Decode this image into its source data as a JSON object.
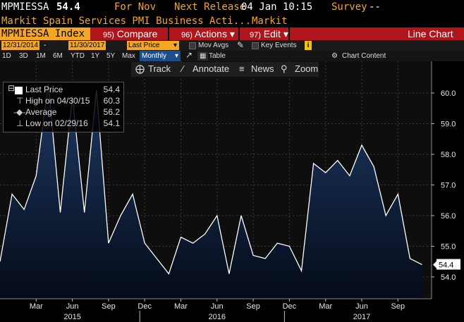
{
  "header": {
    "ticker": "MPMIESSA",
    "last": "54.4",
    "for_label": "For Nov",
    "next_release_label": "Next Release",
    "next_release_value": "04 Jan 10:15",
    "survey_label": "Survey",
    "survey_value": "--",
    "description": "Markit Spain Services PMI Business Acti...",
    "source": "Markit"
  },
  "command_bar": {
    "ticker_box": "MPMIESSA Index",
    "compare_num": "95)",
    "compare_label": "Compare",
    "actions_num": "96)",
    "actions_label": "Actions",
    "edit_num": "97)",
    "edit_label": "Edit",
    "view_label": "Line Chart"
  },
  "controls": {
    "start_date": "12/31/2014",
    "end_date": "11/30/2017",
    "field": "Last Price",
    "mov_avgs": "Mov Avgs",
    "key_events": "Key Events",
    "key_events_badge": "i",
    "periods": [
      "1D",
      "3D",
      "1M",
      "6M",
      "YTD",
      "1Y",
      "5Y",
      "Max"
    ],
    "frequency": "Monthly",
    "table_label": "Table",
    "chart_content_label": "Chart Content"
  },
  "toolbar": {
    "track": "Track",
    "annotate": "Annotate",
    "news": "News",
    "zoom": "Zoom"
  },
  "legend": {
    "last_price_label": "Last Price",
    "last_price_value": "54.4",
    "high_label": "High on 04/30/15",
    "high_value": "60.3",
    "average_label": "Average",
    "average_value": "56.2",
    "low_label": "Low on 02/29/16",
    "low_value": "54.1"
  },
  "colors": {
    "line": "#ffffff",
    "fill_top": "#1e3a66",
    "fill_bottom": "#050b18",
    "axis_text": "#e6e6e6",
    "accent": "#f5a623",
    "bar_red": "#b0151b"
  },
  "chart_data": {
    "type": "area",
    "title": "",
    "xlabel": "",
    "ylabel": "",
    "x": [
      "2014-12",
      "2015-01",
      "2015-02",
      "2015-03",
      "2015-04",
      "2015-05",
      "2015-06",
      "2015-07",
      "2015-08",
      "2015-09",
      "2015-10",
      "2015-11",
      "2015-12",
      "2016-01",
      "2016-02",
      "2016-03",
      "2016-04",
      "2016-05",
      "2016-06",
      "2016-07",
      "2016-08",
      "2016-09",
      "2016-10",
      "2016-11",
      "2016-12",
      "2017-01",
      "2017-02",
      "2017-03",
      "2017-04",
      "2017-05",
      "2017-06",
      "2017-07",
      "2017-08",
      "2017-09",
      "2017-10",
      "2017-11"
    ],
    "values": [
      54.5,
      56.7,
      56.2,
      57.3,
      60.3,
      56.1,
      59.9,
      56.1,
      60.1,
      55.1,
      56.0,
      56.7,
      55.1,
      54.6,
      54.1,
      55.3,
      55.1,
      55.4,
      56.0,
      54.1,
      56.0,
      54.7,
      54.6,
      55.1,
      55.0,
      54.2,
      57.7,
      57.4,
      57.8,
      57.3,
      58.3,
      57.6,
      56.0,
      56.7,
      54.6,
      54.4
    ],
    "ylim": [
      53.9,
      60.45
    ],
    "y_ticks": [
      54.0,
      55.0,
      56.0,
      57.0,
      58.0,
      59.0,
      60.0
    ],
    "y_tick_labels": [
      "54.0",
      "55.0",
      "56.0",
      "57.0",
      "58.0",
      "59.0",
      "60.0"
    ],
    "x_month_ticks": [
      {
        "label": "Mar",
        "i": 3
      },
      {
        "label": "Jun",
        "i": 6
      },
      {
        "label": "Sep",
        "i": 9
      },
      {
        "label": "Dec",
        "i": 12
      },
      {
        "label": "Mar",
        "i": 15
      },
      {
        "label": "Jun",
        "i": 18
      },
      {
        "label": "Sep",
        "i": 21
      },
      {
        "label": "Dec",
        "i": 24
      },
      {
        "label": "Mar",
        "i": 27
      },
      {
        "label": "Jun",
        "i": 30
      },
      {
        "label": "Sep",
        "i": 33
      }
    ],
    "x_year_ticks": [
      {
        "label": "2015",
        "i": 6
      },
      {
        "label": "2016",
        "i": 18
      },
      {
        "label": "2017",
        "i": 30
      }
    ],
    "year_separators": [
      12,
      24
    ],
    "last_value_label": "54.4",
    "grid": true,
    "legend_position": "top-left"
  }
}
